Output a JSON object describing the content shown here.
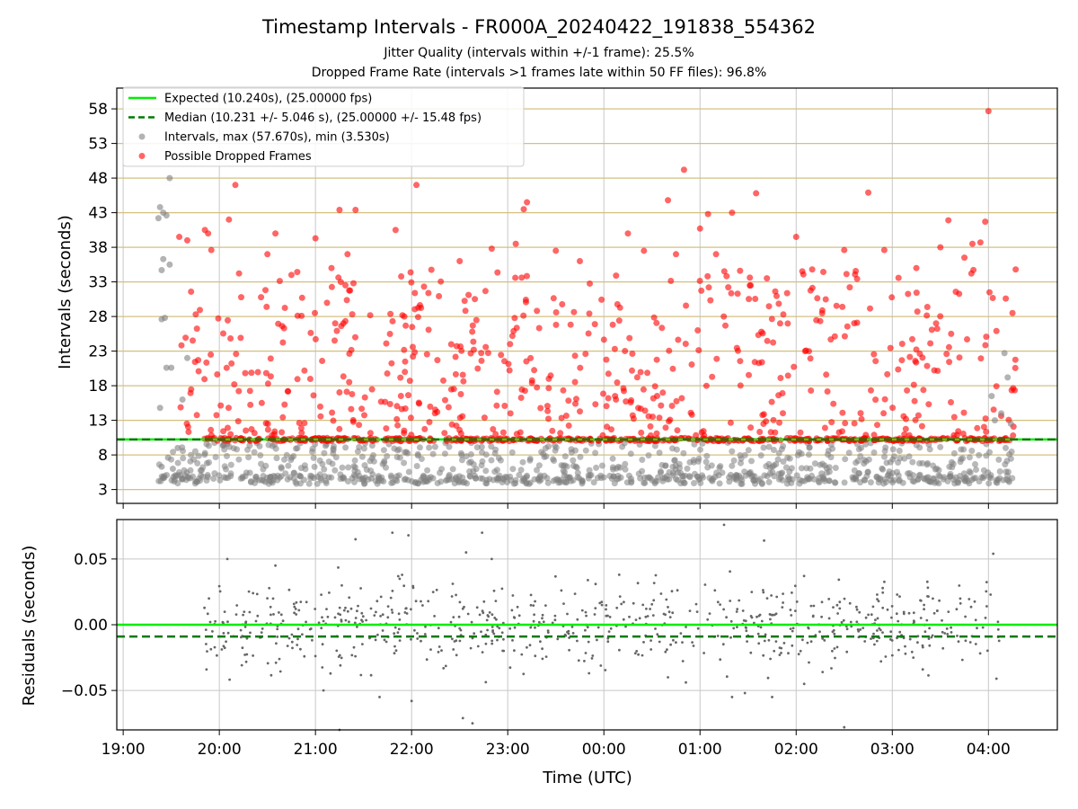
{
  "figure": {
    "title": "Timestamp Intervals - FR000A_20240422_191838_554362",
    "subtitle_line1": "Jitter Quality (intervals within +/-1 frame): 25.5%",
    "subtitle_line2": "Dropped Frame Rate (intervals >1 frames late within 50 FF files): 96.8%"
  },
  "colors": {
    "expected": "#00ee00",
    "median": "#007a00",
    "intervals": "#808080",
    "dropped": "#ff0000",
    "residuals": "#666666",
    "horizontal_grid": "#d4c080",
    "grid": "#c8c8c8"
  },
  "chart_data": [
    {
      "type": "scatter",
      "ylabel": "Intervals (seconds)",
      "xlabel": "",
      "ylim": [
        1,
        61
      ],
      "y_ticks": [
        3,
        8,
        13,
        18,
        23,
        28,
        33,
        38,
        43,
        48,
        53,
        58
      ],
      "x_range": [
        "2024-04-22 18:56",
        "2024-04-23 04:43"
      ],
      "x_ticks": [
        "2024-04-22 19:00",
        "2024-04-22 20:00",
        "2024-04-22 21:00",
        "2024-04-22 22:00",
        "2024-04-22 23:00",
        "2024-04-23 00:00",
        "2024-04-23 01:00",
        "2024-04-23 02:00",
        "2024-04-23 03:00",
        "2024-04-23 04:00"
      ],
      "grid": true,
      "legend_position": "top-left",
      "lines": [
        {
          "name": "Expected (10.240s), (25.00000 fps)",
          "y": 10.24,
          "style": "solid"
        },
        {
          "name": "Median (10.231 +/- 5.046 s), (25.00000 +/- 15.48 fps)",
          "y": 10.231,
          "style": "dashed"
        }
      ],
      "series": [
        {
          "name": "Intervals, max (57.670s), min (3.530s)",
          "max": 57.67,
          "min": 3.53,
          "points": [
            [
              "2024-04-22 19:22",
              42.2
            ],
            [
              "2024-04-22 19:23",
              43.8
            ],
            [
              "2024-04-22 19:25",
              43.0
            ],
            [
              "2024-04-22 19:27",
              42.6
            ],
            [
              "2024-04-22 19:25",
              36.3
            ],
            [
              "2024-04-22 19:24",
              34.7
            ],
            [
              "2024-04-22 19:29",
              35.5
            ],
            [
              "2024-04-22 19:29",
              48.0
            ],
            [
              "2024-04-22 19:24",
              27.6
            ],
            [
              "2024-04-22 19:26",
              27.8
            ],
            [
              "2024-04-22 19:27",
              20.6
            ],
            [
              "2024-04-22 19:30",
              20.6
            ],
            [
              "2024-04-22 19:23",
              14.8
            ],
            [
              "2024-04-22 19:28",
              7.6
            ],
            [
              "2024-04-22 19:31",
              6.0
            ],
            [
              "2024-04-22 19:24",
              6.3
            ],
            [
              "2024-04-22 19:34",
              9.0
            ],
            [
              "2024-04-22 19:37",
              16.0
            ],
            [
              "2024-04-22 19:40",
              22.0
            ],
            [
              "2024-04-23 04:02",
              16.5
            ],
            [
              "2024-04-23 04:04",
              13.0
            ],
            [
              "2024-04-23 04:10",
              22.7
            ],
            [
              "2024-04-23 04:12",
              19.2
            ],
            [
              "2024-04-23 04:08",
              14.0
            ],
            [
              "2024-04-23 04:14",
              12.5
            ]
          ]
        },
        {
          "name": "Possible Dropped Frames",
          "points": [
            [
              "2024-04-22 19:35",
              39.5
            ],
            [
              "2024-04-22 19:40",
              39.0
            ],
            [
              "2024-04-22 19:51",
              40.5
            ],
            [
              "2024-04-22 19:53",
              40.0
            ],
            [
              "2024-04-22 19:55",
              37.6
            ],
            [
              "2024-04-22 20:06",
              42.0
            ],
            [
              "2024-04-22 20:10",
              47.0
            ],
            [
              "2024-04-22 20:30",
              37.0
            ],
            [
              "2024-04-22 20:35",
              40.0
            ],
            [
              "2024-04-22 20:45",
              34.0
            ],
            [
              "2024-04-22 21:00",
              39.3
            ],
            [
              "2024-04-22 21:10",
              35.0
            ],
            [
              "2024-04-22 21:15",
              43.4
            ],
            [
              "2024-04-22 21:20",
              37.0
            ],
            [
              "2024-04-22 21:25",
              43.4
            ],
            [
              "2024-04-22 21:50",
              40.5
            ],
            [
              "2024-04-22 22:03",
              47.0
            ],
            [
              "2024-04-22 22:30",
              36.0
            ],
            [
              "2024-04-22 22:50",
              37.8
            ],
            [
              "2024-04-22 23:05",
              38.5
            ],
            [
              "2024-04-22 23:10",
              43.5
            ],
            [
              "2024-04-22 23:12",
              44.5
            ],
            [
              "2024-04-22 23:30",
              37.5
            ],
            [
              "2024-04-22 23:45",
              36.0
            ],
            [
              "2024-04-23 00:15",
              40.0
            ],
            [
              "2024-04-23 00:25",
              37.5
            ],
            [
              "2024-04-23 00:40",
              44.8
            ],
            [
              "2024-04-23 00:45",
              37.0
            ],
            [
              "2024-04-23 00:50",
              49.2
            ],
            [
              "2024-04-23 01:00",
              40.7
            ],
            [
              "2024-04-23 01:05",
              42.8
            ],
            [
              "2024-04-23 01:10",
              37.0
            ],
            [
              "2024-04-23 01:20",
              43.0
            ],
            [
              "2024-04-23 01:25",
              34.6
            ],
            [
              "2024-04-23 01:35",
              45.8
            ],
            [
              "2024-04-23 01:50",
              27.0
            ],
            [
              "2024-04-23 02:00",
              39.5
            ],
            [
              "2024-04-23 02:10",
              34.8
            ],
            [
              "2024-04-23 02:30",
              37.6
            ],
            [
              "2024-04-23 02:45",
              45.9
            ],
            [
              "2024-04-23 02:55",
              37.6
            ],
            [
              "2024-04-23 03:15",
              35.0
            ],
            [
              "2024-04-23 03:30",
              38.0
            ],
            [
              "2024-04-23 03:35",
              41.9
            ],
            [
              "2024-04-23 03:45",
              36.5
            ],
            [
              "2024-04-23 03:50",
              38.5
            ],
            [
              "2024-04-23 03:55",
              38.7
            ],
            [
              "2024-04-23 03:58",
              41.7
            ],
            [
              "2024-04-23 04:00",
              57.67
            ],
            [
              "2024-04-23 04:05",
              25.9
            ],
            [
              "2024-04-23 04:15",
              28.5
            ],
            [
              "2024-04-23 04:17",
              34.8
            ]
          ]
        }
      ]
    },
    {
      "type": "scatter",
      "ylabel": "Residuals (seconds)",
      "xlabel": "Time (UTC)",
      "ylim": [
        -0.08,
        0.08
      ],
      "y_ticks": [
        -0.05,
        0.0,
        0.05
      ],
      "y_tick_labels": [
        "−0.05",
        "0.00",
        "0.05"
      ],
      "x_ticks": [
        "2024-04-22 19:00",
        "2024-04-22 20:00",
        "2024-04-22 21:00",
        "2024-04-22 22:00",
        "2024-04-22 23:00",
        "2024-04-23 00:00",
        "2024-04-23 01:00",
        "2024-04-23 02:00",
        "2024-04-23 03:00",
        "2024-04-23 04:00"
      ],
      "x_tick_labels": [
        "19:00",
        "20:00",
        "21:00",
        "22:00",
        "23:00",
        "00:00",
        "01:00",
        "02:00",
        "03:00",
        "04:00"
      ],
      "grid": true,
      "lines": [
        {
          "name": "Expected",
          "y": 0.0,
          "style": "solid"
        },
        {
          "name": "Median",
          "y": -0.009,
          "style": "dashed"
        }
      ],
      "series": [
        {
          "name": "",
          "points": [
            [
              "2024-04-22 19:52",
              -0.034
            ],
            [
              "2024-04-22 20:05",
              0.05
            ],
            [
              "2024-04-22 20:35",
              0.045
            ],
            [
              "2024-04-22 21:05",
              -0.05
            ],
            [
              "2024-04-22 21:15",
              -0.08
            ],
            [
              "2024-04-22 21:25",
              0.065
            ],
            [
              "2024-04-22 21:40",
              -0.055
            ],
            [
              "2024-04-22 21:48",
              0.07
            ],
            [
              "2024-04-22 21:58",
              0.068
            ],
            [
              "2024-04-22 22:00",
              -0.058
            ],
            [
              "2024-04-22 22:32",
              -0.071
            ],
            [
              "2024-04-22 22:34",
              0.055
            ],
            [
              "2024-04-22 22:38",
              -0.075
            ],
            [
              "2024-04-22 22:44",
              0.07
            ],
            [
              "2024-04-22 22:50",
              0.05
            ],
            [
              "2024-04-23 00:40",
              -0.04
            ],
            [
              "2024-04-23 01:15",
              0.076
            ],
            [
              "2024-04-23 01:20",
              -0.055
            ],
            [
              "2024-04-23 01:28",
              -0.052
            ],
            [
              "2024-04-23 01:40",
              0.064
            ],
            [
              "2024-04-23 01:45",
              -0.055
            ],
            [
              "2024-04-23 02:05",
              -0.045
            ],
            [
              "2024-04-23 02:30",
              -0.078
            ],
            [
              "2024-04-23 04:03",
              0.054
            ],
            [
              "2024-04-23 04:05",
              -0.041
            ]
          ]
        }
      ]
    }
  ]
}
